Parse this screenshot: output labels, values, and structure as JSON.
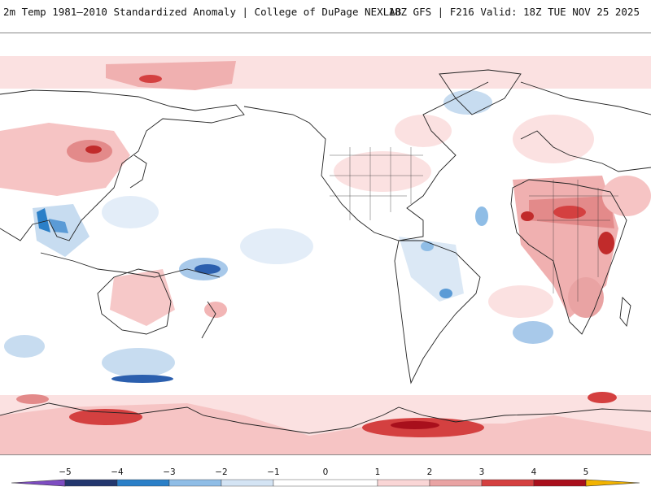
{
  "header": {
    "title_left": "2m Temp 1981–2010 Standardized Anomaly | College of DuPage NEXLAB",
    "title_right": "18Z GFS | F216 Valid: 18Z TUE NOV 25 2025"
  },
  "map": {
    "projection": "global cylindrical, Pacific-centered",
    "field": "2m temperature standardized anomaly"
  },
  "colorbar": {
    "ticks": [
      "−5",
      "−4",
      "−3",
      "−2",
      "−1",
      "0",
      "1",
      "2",
      "3",
      "4",
      "5"
    ],
    "colors": {
      "m5": "#7d4cc1",
      "m4": "#23376e",
      "m3": "#2b7fc7",
      "m2": "#8fbde6",
      "m1": "#d4e4f4",
      "n0": "#ffffff",
      "p1": "#fad6d6",
      "p2": "#e9a3a3",
      "p3": "#d44040",
      "p4": "#a80f1c",
      "p5": "#f2b300"
    }
  }
}
